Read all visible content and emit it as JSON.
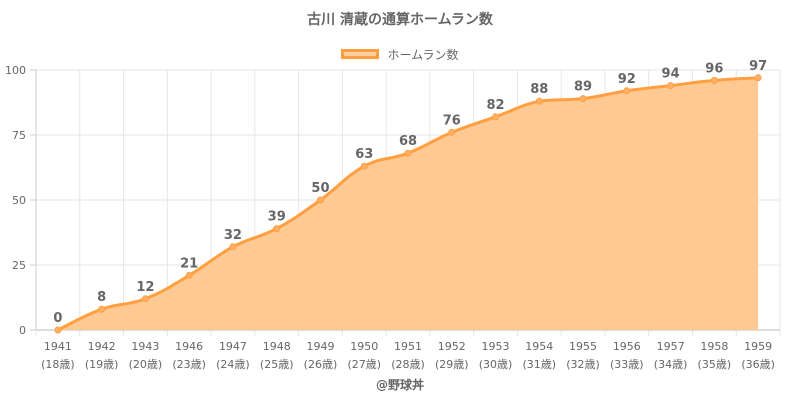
{
  "chart_data": {
    "type": "area",
    "title": "古川 清蔵の通算ホームラン数",
    "categories": [
      "1941",
      "1942",
      "1943",
      "1946",
      "1947",
      "1948",
      "1949",
      "1950",
      "1951",
      "1952",
      "1953",
      "1954",
      "1955",
      "1956",
      "1957",
      "1958",
      "1959"
    ],
    "ages": [
      "(18歳)",
      "(19歳)",
      "(20歳)",
      "(23歳)",
      "(24歳)",
      "(25歳)",
      "(26歳)",
      "(27歳)",
      "(28歳)",
      "(29歳)",
      "(30歳)",
      "(31歳)",
      "(32歳)",
      "(33歳)",
      "(34歳)",
      "(35歳)",
      "(36歳)"
    ],
    "series": [
      {
        "name": "ホームラン数",
        "values": [
          0,
          8,
          12,
          21,
          32,
          39,
          50,
          63,
          68,
          76,
          82,
          88,
          89,
          92,
          94,
          96,
          97
        ]
      }
    ],
    "ylim": [
      0,
      100
    ],
    "yticks": [
      0,
      25,
      50,
      75,
      100
    ],
    "grid": true,
    "legend_position": "top-center",
    "colors": {
      "line": "#ff9f40",
      "fill": "#ffc993",
      "grid": "#e6e6e6",
      "text": "#666666"
    }
  },
  "credit": "@野球丼"
}
